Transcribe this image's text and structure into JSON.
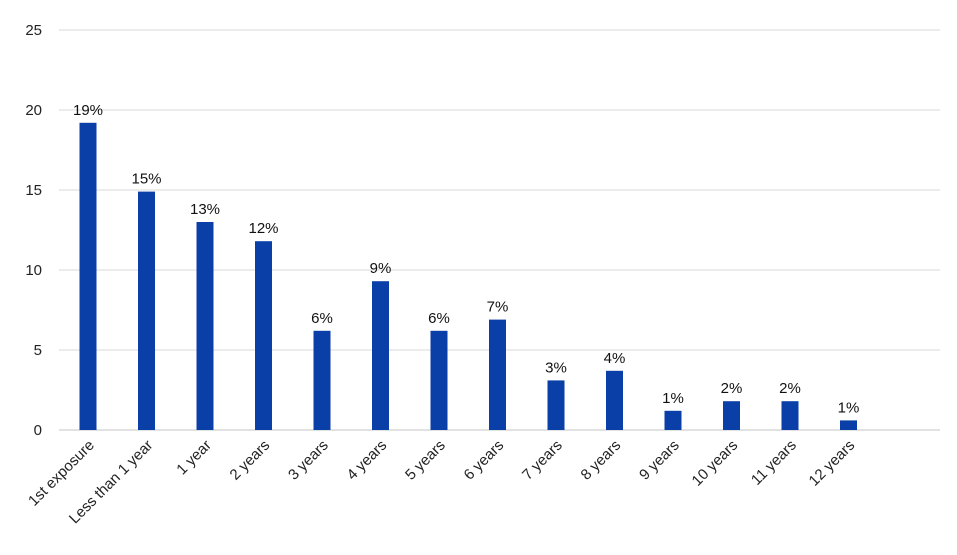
{
  "chart_data": {
    "type": "bar",
    "categories": [
      "1st exposure",
      "Less than 1 year",
      "1 year",
      "2 years",
      "3 years",
      "4 years",
      "5 years",
      "6 years",
      "7 years",
      "8 years",
      "9 years",
      "10 years",
      "11 years",
      "12 years"
    ],
    "values": [
      19.2,
      14.9,
      13.0,
      11.8,
      6.2,
      9.3,
      6.2,
      6.9,
      3.1,
      3.7,
      1.2,
      1.8,
      1.8,
      0.6
    ],
    "data_labels": [
      "19%",
      "15%",
      "13%",
      "12%",
      "6%",
      "9%",
      "6%",
      "7%",
      "3%",
      "4%",
      "1%",
      "2%",
      "2%",
      "1%"
    ],
    "y_ticks": [
      "0",
      "5",
      "10",
      "15",
      "20",
      "25"
    ],
    "ylim": [
      0,
      25
    ],
    "grid": true,
    "bar_color": "#0b3fa8",
    "grid_color": "#d9d9d9"
  }
}
